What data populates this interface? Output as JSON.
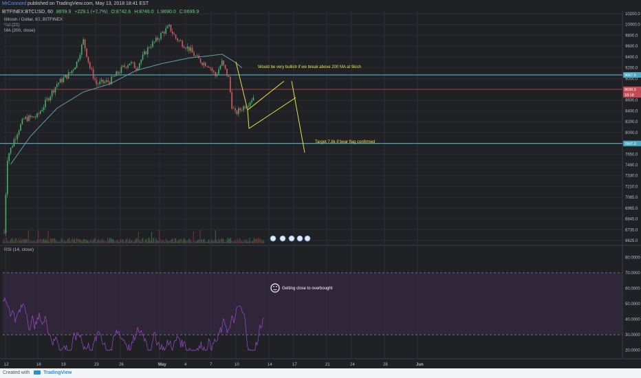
{
  "header": {
    "author": "MrConnord",
    "published": "published on TradingView.com, May 13, 2018 18:41 EST"
  },
  "symbol": {
    "name": "BITFINEX:BTCUSD, 60",
    "open": "8699.9",
    "change": "+229.1 (+2.7%)",
    "o": "O:8742.6",
    "h": "H:8746.0",
    "l": "L:8690.0",
    "c": "C:8699.9"
  },
  "indicators": {
    "pair": "Bitcoin / Dollar, 60, BITFINEX",
    "vol": "Vol (20)",
    "ma": "MA (200, close)",
    "rsi": "RSI (14, close)"
  },
  "annotations": {
    "ma_note": "Would be very bullish if we break above 200 MA at 9kish",
    "target_note": "Target 7.8k if bear flag confirmed",
    "rsi_note": "Getting close to overbought"
  },
  "price_badges": {
    "upper": "9067.5",
    "current": "8699.9",
    "current_time": "18:18",
    "lower": "7847.0"
  },
  "footer": {
    "created": "Created with",
    "brand": "TradingView"
  },
  "colors": {
    "bg": "#1f2125",
    "candle_up": "#49b06a",
    "candle_down": "#d95a5a",
    "ma": "#5f9fb0",
    "rsi": "#a24ad1",
    "rsi_band": "#3a2a4a",
    "hline_cyan": "#62c4d8",
    "hline_red": "#c44b55",
    "yellow": "#ece04c"
  },
  "chart_data": [
    {
      "type": "candlestick",
      "title": "BITFINEX:BTCUSD, 60",
      "x_tick_labels": [
        "12",
        "16",
        "19",
        "23",
        "26",
        "May",
        "4",
        "7",
        "10",
        "14",
        "17",
        "21",
        "24",
        "28",
        "Jun"
      ],
      "y_tick_labels": [
        "10200.0",
        "10000.0",
        "9800.0",
        "9600.0",
        "9400.0",
        "9200.0",
        "9000.0",
        "8800.0",
        "8600.0",
        "8400.0",
        "8200.0",
        "8000.0",
        "7850.0",
        "7650.0",
        "7490.0",
        "7330.0",
        "7210.0",
        "7085.0",
        "6965.0",
        "6845.0",
        "6735.0",
        "6625.0"
      ],
      "ylim": [
        6625,
        10200
      ],
      "approx_close_path": [
        [
          0,
          6700
        ],
        [
          0.5,
          7600
        ],
        [
          1.5,
          7900
        ],
        [
          3,
          8250
        ],
        [
          5,
          8300
        ],
        [
          6,
          8500
        ],
        [
          8,
          8900
        ],
        [
          10,
          9100
        ],
        [
          11,
          9300
        ],
        [
          12,
          9700
        ],
        [
          13,
          9200
        ],
        [
          14,
          8900
        ],
        [
          16,
          8950
        ],
        [
          18,
          9200
        ],
        [
          19,
          9300
        ],
        [
          20,
          9200
        ],
        [
          21,
          9400
        ],
        [
          22,
          9600
        ],
        [
          23,
          9700
        ],
        [
          24,
          9850
        ],
        [
          25,
          9950
        ],
        [
          26,
          9750
        ],
        [
          27,
          9650
        ],
        [
          28,
          9550
        ],
        [
          29,
          9400
        ],
        [
          30,
          9300
        ],
        [
          31,
          9250
        ],
        [
          32,
          9050
        ],
        [
          33,
          9300
        ],
        [
          34,
          9000
        ],
        [
          34.5,
          8500
        ],
        [
          35,
          8350
        ],
        [
          36,
          8450
        ],
        [
          37,
          8550
        ],
        [
          38,
          8700
        ]
      ],
      "moving_average": [
        [
          1,
          7500
        ],
        [
          4,
          7950
        ],
        [
          8,
          8450
        ],
        [
          12,
          8750
        ],
        [
          16,
          8900
        ],
        [
          20,
          9150
        ],
        [
          24,
          9280
        ],
        [
          28,
          9380
        ],
        [
          31,
          9420
        ],
        [
          33,
          9450
        ],
        [
          35,
          9300
        ],
        [
          36,
          9200
        ]
      ],
      "horizontal_levels": [
        9067.5,
        8800,
        7847
      ],
      "series": [
        {
          "name": "Vol (20)"
        },
        {
          "name": "MA (200, close)"
        }
      ]
    },
    {
      "type": "line",
      "title": "RSI (14, close)",
      "y_tick_labels": [
        "80.0000",
        "70.0000",
        "60.0000",
        "50.0000",
        "40.0000",
        "30.0000",
        "20.0000"
      ],
      "ylim": [
        15,
        85
      ],
      "band": [
        30,
        70
      ],
      "series": [
        {
          "name": "RSI (14, close)"
        }
      ]
    }
  ]
}
